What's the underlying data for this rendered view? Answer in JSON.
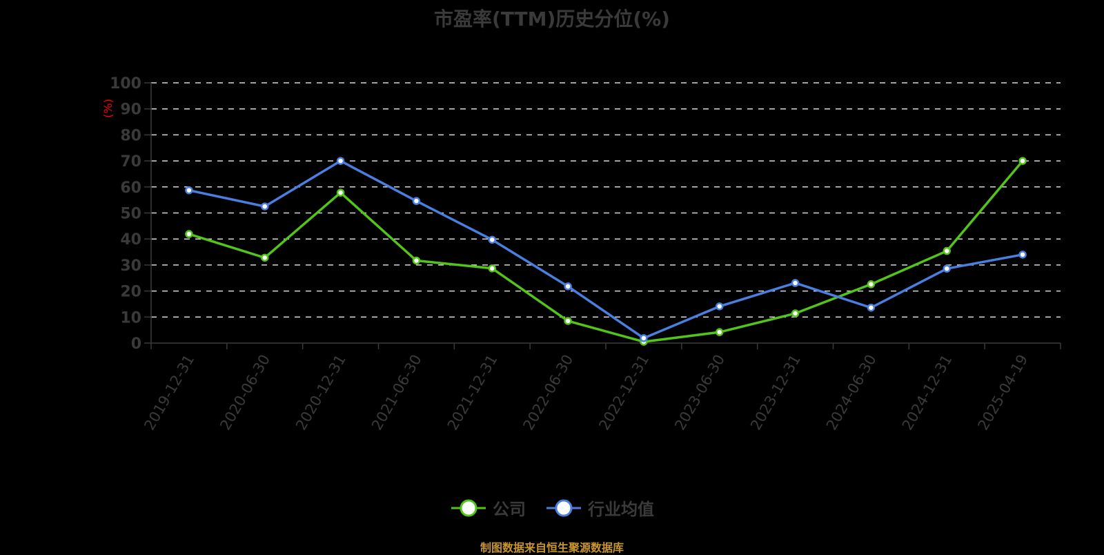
{
  "title": "市盈率(TTM)历史分位(%)",
  "footer": "制图数据来自恒生聚源数据库",
  "colors": {
    "background": "#000000",
    "company": "#52c41a",
    "industry": "#4a7fe0",
    "grid": "#d9d9d9",
    "axis": "#3a3a3a",
    "text": "#3a3a3a",
    "yunit": "#ff0000",
    "footer": "#c8962a"
  },
  "legend": [
    {
      "name": "公司",
      "color": "#52c41a"
    },
    {
      "name": "行业均值",
      "color": "#4a7fe0"
    }
  ],
  "chart_data": {
    "type": "line",
    "title": "市盈率(TTM)历史分位(%)",
    "xlabel": "",
    "ylabel": "(%)",
    "ylim": [
      0,
      100
    ],
    "yticks": [
      0,
      10,
      20,
      30,
      40,
      50,
      60,
      70,
      80,
      90,
      100
    ],
    "grid": true,
    "legend_position": "bottom",
    "categories": [
      "2019-12-31",
      "2020-06-30",
      "2020-12-31",
      "2021-06-30",
      "2021-12-31",
      "2022-06-30",
      "2022-12-31",
      "2023-06-30",
      "2023-12-31",
      "2024-06-30",
      "2024-12-31",
      "2025-04-19"
    ],
    "series": [
      {
        "name": "公司",
        "color": "#52c41a",
        "values": [
          41.9,
          32.8,
          57.8,
          31.7,
          28.7,
          8.5,
          0.5,
          4.2,
          11.4,
          22.6,
          35.4,
          70.0
        ]
      },
      {
        "name": "行业均值",
        "color": "#4a7fe0",
        "values": [
          58.7,
          52.5,
          70.0,
          54.6,
          39.7,
          21.8,
          1.9,
          14.1,
          23.1,
          13.6,
          28.6,
          34.0
        ]
      }
    ]
  }
}
